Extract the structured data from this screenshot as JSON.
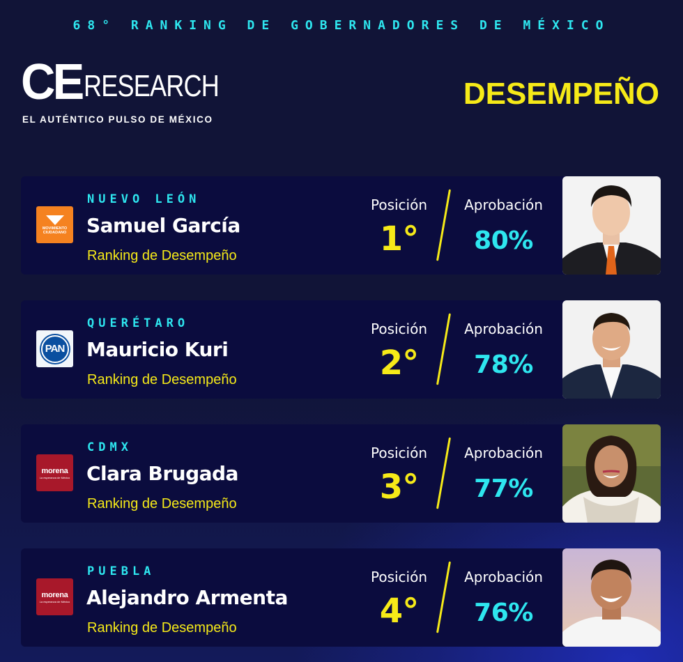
{
  "header": {
    "edition_title": "68° RANKING DE GOBERNADORES DE MÉXICO",
    "logo_ce": "CE",
    "logo_research": "RESEARCH",
    "logo_tagline": "EL AUTÉNTICO PULSO DE MÉXICO",
    "section_title": "DESEMPEÑO"
  },
  "labels": {
    "position": "Posición",
    "approval": "Aprobación",
    "ranking": "Ranking de Desempeño"
  },
  "governors": [
    {
      "state": "NUEVO LEÓN",
      "name": "Samuel García",
      "party_icon": "movimiento-ciudadano-logo",
      "party_text": "MOVIMIENTO CIUDADANO",
      "party_color": "#f58220",
      "position": "1°",
      "approval": "80%"
    },
    {
      "state": "QUERÉTARO",
      "name": "Mauricio Kuri",
      "party_icon": "pan-logo",
      "party_text": "PAN",
      "party_color": "#0a4fa0",
      "position": "2°",
      "approval": "78%"
    },
    {
      "state": "CDMX",
      "name": "Clara Brugada",
      "party_icon": "morena-logo",
      "party_text": "morena",
      "party_subtext": "La esperanza de México",
      "party_color": "#a8182a",
      "position": "3°",
      "approval": "77%"
    },
    {
      "state": "PUEBLA",
      "name": "Alejandro Armenta",
      "party_icon": "morena-logo",
      "party_text": "morena",
      "party_subtext": "La esperanza de México",
      "party_color": "#a8182a",
      "position": "4°",
      "approval": "76%"
    }
  ],
  "colors": {
    "accent_cyan": "#2ee6ef",
    "accent_yellow": "#f6ea18",
    "card_bg": "#0b0c3e",
    "page_bg": "#111437"
  }
}
